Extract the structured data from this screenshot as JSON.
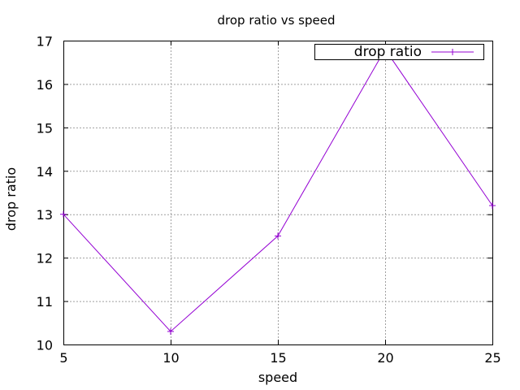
{
  "chart_data": {
    "type": "line",
    "title": "drop ratio vs speed",
    "xlabel": "speed",
    "ylabel": "drop ratio",
    "xlim": [
      5,
      25
    ],
    "ylim": [
      10,
      17
    ],
    "xticks": [
      "5",
      "10",
      "15",
      "20",
      "25"
    ],
    "yticks": [
      "10",
      "11",
      "12",
      "13",
      "14",
      "15",
      "16",
      "17"
    ],
    "grid": true,
    "legend_position": "top-right",
    "x": [
      5,
      10,
      15,
      20,
      25
    ],
    "series": [
      {
        "name": "drop ratio",
        "color": "#9400d3",
        "marker": "plus",
        "values": [
          13.0,
          10.3,
          12.5,
          16.8,
          13.2
        ]
      }
    ]
  }
}
